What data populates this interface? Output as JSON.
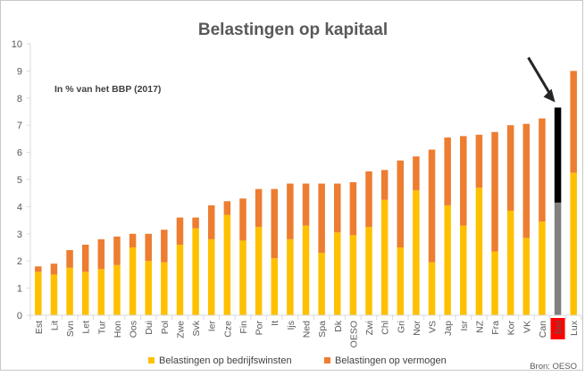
{
  "chart_data": {
    "type": "bar",
    "stacked": true,
    "title": "Belastingen op kapitaal",
    "subtitle": "In % van het BBP (2017)",
    "source": "Bron: OESO",
    "xlabel": "",
    "ylabel": "",
    "ylim": [
      0,
      10
    ],
    "yticks": [
      "0",
      "1",
      "2",
      "3",
      "4",
      "5",
      "6",
      "7",
      "8",
      "9",
      "10"
    ],
    "grid": false,
    "legend_position": "bottom",
    "categories": [
      "Est",
      "Lit",
      "Svn",
      "Let",
      "Tur",
      "Hon",
      "Oos",
      "Dui",
      "Pol",
      "Zwe",
      "Svk",
      "Ier",
      "Cze",
      "Fin",
      "Por",
      "It",
      "Ijs",
      "Ned",
      "Spa",
      "Dk",
      "OESO",
      "Zwi",
      "Chl",
      "Gri",
      "Nor",
      "VS",
      "Jap",
      "Isr",
      "NZ",
      "Fra",
      "Kor",
      "VK",
      "Can",
      "Bel",
      "Lux"
    ],
    "highlight_category": "Bel",
    "series": [
      {
        "name": "Belastingen op bedrijfswinsten",
        "color": "#FFC000",
        "highlight_color": "#808080",
        "values": [
          1.6,
          1.5,
          1.75,
          1.6,
          1.7,
          1.85,
          2.5,
          2.0,
          1.95,
          2.6,
          3.2,
          2.8,
          3.7,
          2.75,
          3.25,
          2.1,
          2.8,
          3.3,
          2.3,
          3.05,
          2.95,
          3.25,
          4.25,
          2.5,
          4.6,
          1.95,
          4.05,
          3.3,
          4.7,
          2.35,
          3.85,
          2.85,
          3.45,
          4.15,
          5.25
        ]
      },
      {
        "name": "Belastingen op vermogen",
        "color": "#ED7D31",
        "highlight_color": "#000000",
        "values": [
          0.2,
          0.4,
          0.65,
          1.0,
          1.1,
          1.05,
          0.5,
          1.0,
          1.2,
          1.0,
          0.4,
          1.25,
          0.5,
          1.55,
          1.4,
          2.55,
          2.05,
          1.55,
          2.55,
          1.8,
          1.95,
          2.05,
          1.1,
          3.2,
          1.25,
          4.15,
          2.5,
          3.3,
          1.95,
          4.4,
          3.15,
          4.2,
          3.8,
          3.5,
          3.75
        ]
      }
    ],
    "annotations": [
      {
        "type": "arrow",
        "target": "Bel",
        "label": ""
      }
    ],
    "colors": {
      "axis": "#d9d9d9",
      "text": "#595959",
      "title": "#595959",
      "arrow": "#262626",
      "highlight_label_bg": "#ff0000"
    }
  }
}
